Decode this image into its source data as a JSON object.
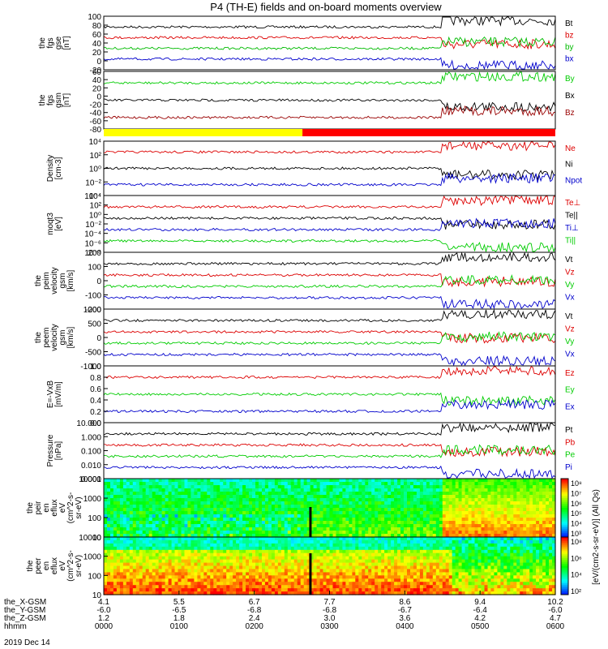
{
  "title": "P4 (TH-E) fields and on-board moments overview",
  "chart_data": {
    "type": "line",
    "title": "P4 (TH-E) fields and on-board moments overview",
    "date_label": "2019 Dec 14",
    "time_axis": {
      "hhmm": [
        "0000",
        "0100",
        "0200",
        "0300",
        "0400",
        "0500",
        "0600"
      ],
      "ephemeris": [
        {
          "name": "the_X-GSM",
          "values": [
            "4.1",
            "5.5",
            "6.7",
            "7.7",
            "8.6",
            "9.4",
            "10.2"
          ]
        },
        {
          "name": "the_Y-GSM",
          "values": [
            "-6.0",
            "-6.5",
            "-6.8",
            "-6.8",
            "-6.7",
            "-6.4",
            "-6.0"
          ]
        },
        {
          "name": "the_Z-GSM",
          "values": [
            "1.2",
            "1.8",
            "2.4",
            "3.0",
            "3.6",
            "4.2",
            "4.7"
          ]
        },
        {
          "name": "hhmm",
          "values": [
            "0000",
            "0100",
            "0200",
            "0300",
            "0400",
            "0500",
            "0600"
          ]
        }
      ]
    },
    "panels": [
      {
        "ylabel": [
          "the",
          "fgs",
          "gse",
          "[nT]"
        ],
        "yticks": [
          "100",
          "80",
          "60",
          "40",
          "20",
          "0",
          "-20"
        ],
        "ylim": [
          -30,
          100
        ],
        "series": [
          {
            "name": "Bt",
            "color": "#000000"
          },
          {
            "name": "bz",
            "color": "#dd0000"
          },
          {
            "name": "by",
            "color": "#00bb00"
          },
          {
            "name": "bx",
            "color": "#0000cc"
          }
        ]
      },
      {
        "ylabel": [
          "the",
          "fgs",
          "gsm",
          "[nT]"
        ],
        "yticks": [
          "60",
          "40",
          "20",
          "0",
          "-20",
          "-40",
          "-60",
          "-80"
        ],
        "ylim": [
          -90,
          60
        ],
        "series": [
          {
            "name": "By",
            "color": "#00cc00"
          },
          {
            "name": "Bx",
            "color": "#000000"
          },
          {
            "name": "Bz",
            "color": "#990000"
          }
        ]
      },
      {
        "type": "mode_bar",
        "segments": [
          {
            "color": "#ffff00",
            "fraction": 0.44
          },
          {
            "color": "#ff0000",
            "fraction": 0.56
          }
        ]
      },
      {
        "ylabel": [
          "Density",
          "[cm-3]"
        ],
        "yticks": [
          "10⁴",
          "10²",
          "10⁰",
          "10⁻²",
          "10⁻⁴"
        ],
        "log": true,
        "series": [
          {
            "name": "Ne",
            "color": "#dd0000"
          },
          {
            "name": "Ni",
            "color": "#000000"
          },
          {
            "name": "Npot",
            "color": "#0000cc"
          }
        ]
      },
      {
        "ylabel": [
          "moqt3",
          "[eV]"
        ],
        "yticks": [
          "10⁴",
          "10²",
          "10⁰",
          "10⁻²",
          "10⁻⁴",
          "10⁻⁶",
          "10⁻⁸"
        ],
        "log": true,
        "series": [
          {
            "name": "Te⊥",
            "color": "#dd0000"
          },
          {
            "name": "Te||",
            "color": "#000000"
          },
          {
            "name": "Ti⊥",
            "color": "#0000cc"
          },
          {
            "name": "Ti||",
            "color": "#00cc00"
          }
        ]
      },
      {
        "ylabel": [
          "the",
          "peim",
          "velocity",
          "gsm",
          "[km/s]"
        ],
        "yticks": [
          "200",
          "100",
          "0",
          "-100",
          "-200"
        ],
        "ylim": [
          -200,
          200
        ],
        "series": [
          {
            "name": "Vt",
            "color": "#000000"
          },
          {
            "name": "Vz",
            "color": "#dd0000"
          },
          {
            "name": "Vy",
            "color": "#00cc00"
          },
          {
            "name": "Vx",
            "color": "#0000cc"
          }
        ]
      },
      {
        "ylabel": [
          "the",
          "peem",
          "velocity",
          "gsm",
          "[km/s]"
        ],
        "yticks": [
          "1000",
          "500",
          "0",
          "-500",
          "-1000"
        ],
        "ylim": [
          -1000,
          1000
        ],
        "series": [
          {
            "name": "Vt",
            "color": "#000000"
          },
          {
            "name": "Vz",
            "color": "#dd0000"
          },
          {
            "name": "Vy",
            "color": "#00cc00"
          },
          {
            "name": "Vx",
            "color": "#0000cc"
          }
        ]
      },
      {
        "ylabel": [
          "E=-VxB",
          "[mV/m]"
        ],
        "yticks": [
          "1.0",
          "0.8",
          "0.6",
          "0.4",
          "0.2",
          "0.0"
        ],
        "ylim": [
          0,
          1
        ],
        "series": [
          {
            "name": "Ez",
            "color": "#dd0000"
          },
          {
            "name": "Ey",
            "color": "#00cc00"
          },
          {
            "name": "Ex",
            "color": "#0000cc"
          }
        ]
      },
      {
        "ylabel": [
          "Pressure",
          "[nPa]"
        ],
        "yticks": [
          "10.000",
          "1.000",
          "0.100",
          "0.010",
          "0.001"
        ],
        "log": true,
        "series": [
          {
            "name": "Pt",
            "color": "#000000"
          },
          {
            "name": "Pb",
            "color": "#dd0000"
          },
          {
            "name": "Pe",
            "color": "#00cc00"
          },
          {
            "name": "Pi",
            "color": "#0000cc"
          }
        ]
      },
      {
        "type": "spectrogram",
        "ylabel": [
          "the",
          "peir",
          "en",
          "eflux",
          "eV",
          "(cm^2-s-",
          "sr-eV)"
        ],
        "yticks": [
          "10000",
          "1000",
          "100",
          "10"
        ],
        "log": true
      },
      {
        "type": "spectrogram",
        "ylabel": [
          "the",
          "peer",
          "en",
          "eflux",
          "eV",
          "(cm^2-s-",
          "sr-eV)"
        ],
        "yticks": [
          "10000",
          "1000",
          "100",
          "10"
        ],
        "log": true
      }
    ],
    "colorbar": {
      "label": "[eV/(cm2-s-sr-eV)] (All Qs)",
      "ticks": [
        "10⁸",
        "10⁷",
        "10⁶",
        "10⁵",
        "10⁴",
        "10³"
      ],
      "ticks2": [
        "10⁸",
        "10⁶",
        "10⁴",
        "10²"
      ]
    }
  }
}
